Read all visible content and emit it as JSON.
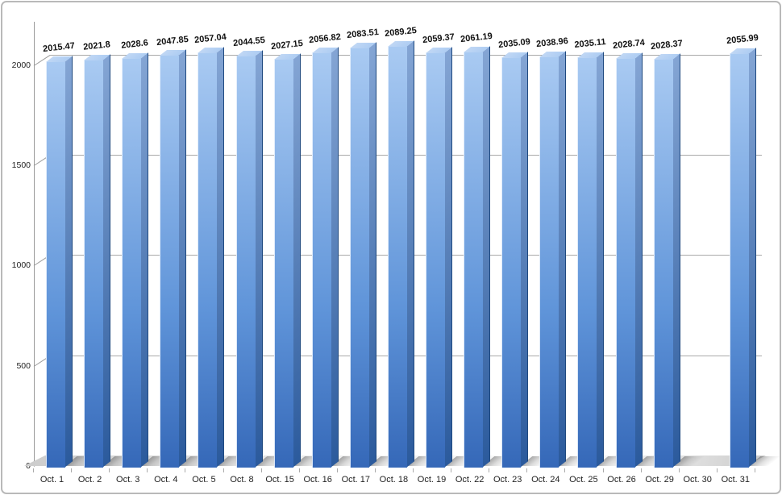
{
  "chart_data": {
    "type": "bar",
    "style": "3d-bar-apple-numbers",
    "title": "",
    "xlabel": "",
    "ylabel": "",
    "categories": [
      "Oct. 1",
      "Oct. 2",
      "Oct. 3",
      "Oct. 4",
      "Oct. 5",
      "Oct. 8",
      "Oct. 15",
      "Oct. 16",
      "Oct. 17",
      "Oct. 18",
      "Oct. 19",
      "Oct. 22",
      "Oct. 23",
      "Oct. 24",
      "Oct. 25",
      "Oct. 26",
      "Oct. 29",
      "Oct. 30",
      "Oct. 31"
    ],
    "values": [
      2015.47,
      2021.8,
      2028.6,
      2047.85,
      2057.04,
      2044.55,
      2027.15,
      2056.82,
      2083.51,
      2089.25,
      2059.37,
      2061.19,
      2035.09,
      2038.96,
      2035.11,
      2028.74,
      2028.37,
      null,
      2055.99
    ],
    "value_labels": [
      "2015.47",
      "2021.8",
      "2028.6",
      "2047.85",
      "2057.04",
      "2044.55",
      "2027.15",
      "2056.82",
      "2083.51",
      "2089.25",
      "2059.37",
      "2061.19",
      "2035.09",
      "2038.96",
      "2035.11",
      "2028.74",
      "2028.37",
      "",
      "2055.99"
    ],
    "yticks": [
      0,
      500,
      1000,
      1500,
      2000
    ],
    "ylim": [
      0,
      2150
    ],
    "grid": "horizontal gridlines at y ticks only",
    "legend": "none",
    "colors": {
      "bar_front_top": "#a9caf2",
      "bar_front_mid": "#5f94d9",
      "bar_front_bottom": "#3568b8",
      "bar_side_top": "#84a5d4",
      "bar_side_bottom": "#2b5a9c",
      "bar_side_edge": "#1f497f",
      "bar_top_face": "#c0d7f4",
      "gridline": "#a9a9a9",
      "axis": "#9a9a9a",
      "floor_light": "#f2f2f2",
      "floor_dark": "#cccccc",
      "shadow": "#6e6e6e",
      "value_label": "#111111",
      "tick_label": "#222222",
      "border": "#b9b9b9"
    }
  }
}
